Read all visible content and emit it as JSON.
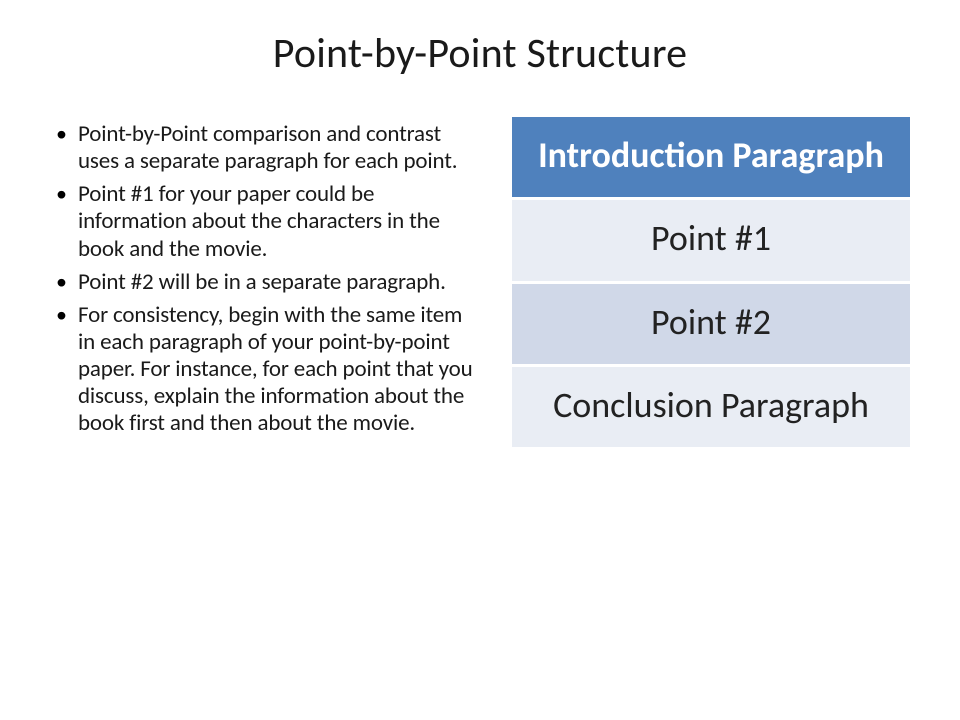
{
  "title": "Point-by-Point Structure",
  "bullets": [
    "Point-by-Point comparison and contrast uses a separate paragraph for each point.",
    "Point #1 for your paper could be information about the characters in the book and the movie.",
    "Point #2 will be in a separate paragraph.",
    "For consistency, begin with the same item in each paragraph of your point-by-point paper. For instance, for each point that you discuss, explain the information about the book first and then about the movie."
  ],
  "table": {
    "rows": [
      {
        "label": "Introduction Paragraph",
        "bg": "#4f81bd",
        "class": "row-header"
      },
      {
        "label": "Point #1",
        "bg": "#e9edf4",
        "class": "row-point"
      },
      {
        "label": "Point #2",
        "bg": "#d0d8e8",
        "class": "row-point"
      },
      {
        "label": "Conclusion Paragraph",
        "bg": "#e9edf4",
        "class": "row-conclusion"
      }
    ]
  },
  "colors": {
    "background": "#ffffff",
    "text": "#1a1a1a",
    "bullet": "#000000"
  }
}
